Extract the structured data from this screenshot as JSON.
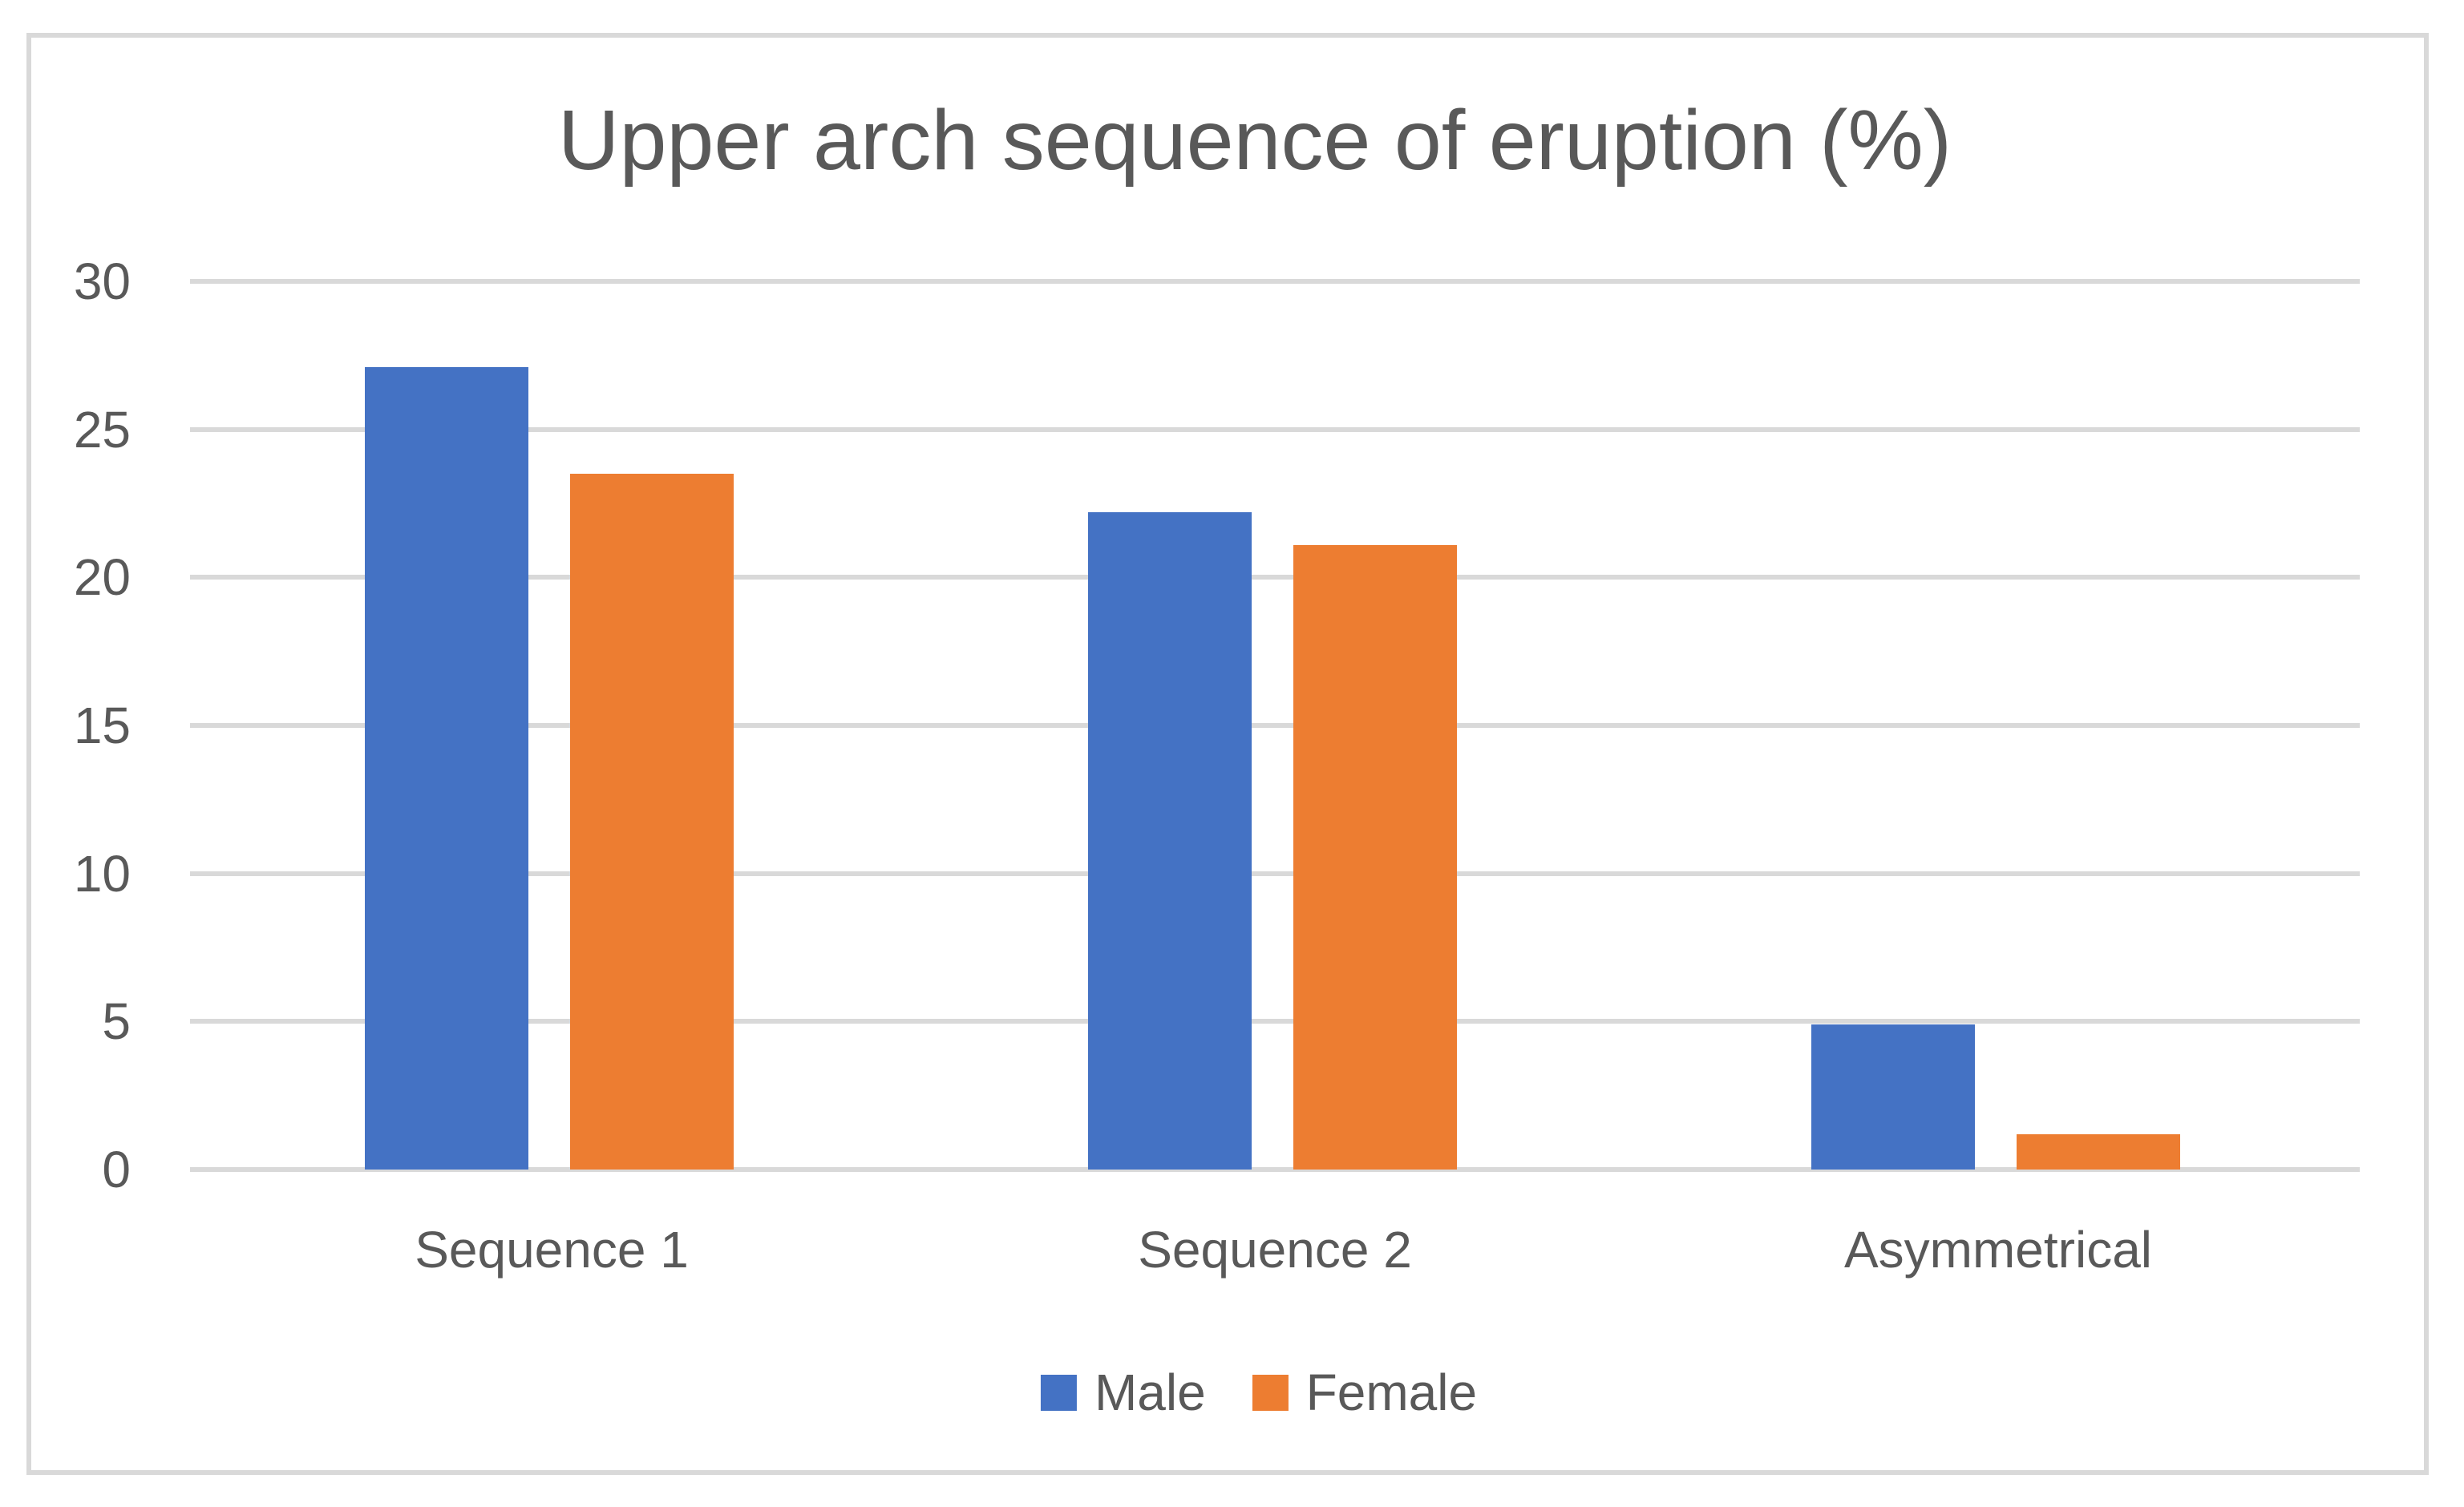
{
  "chart_data": {
    "type": "bar",
    "title": "Upper arch sequence of eruption (%)",
    "categories": [
      "Sequence 1",
      "Sequence 2",
      "Asymmetrical"
    ],
    "series": [
      {
        "name": "Male",
        "color": "#4472C4",
        "values": [
          27.1,
          22.2,
          4.9
        ]
      },
      {
        "name": "Female",
        "color": "#ED7D31",
        "values": [
          23.5,
          21.1,
          1.2
        ]
      }
    ],
    "xlabel": "",
    "ylabel": "",
    "ylim": [
      0,
      30
    ],
    "yticks": [
      0,
      5,
      10,
      15,
      20,
      25,
      30
    ],
    "grid": true,
    "legend_position": "bottom",
    "gridline_color": "#D9D9D9",
    "frame_border_color": "#D9D9D9",
    "text_color": "#595959",
    "background_color": "#FFFFFF"
  }
}
